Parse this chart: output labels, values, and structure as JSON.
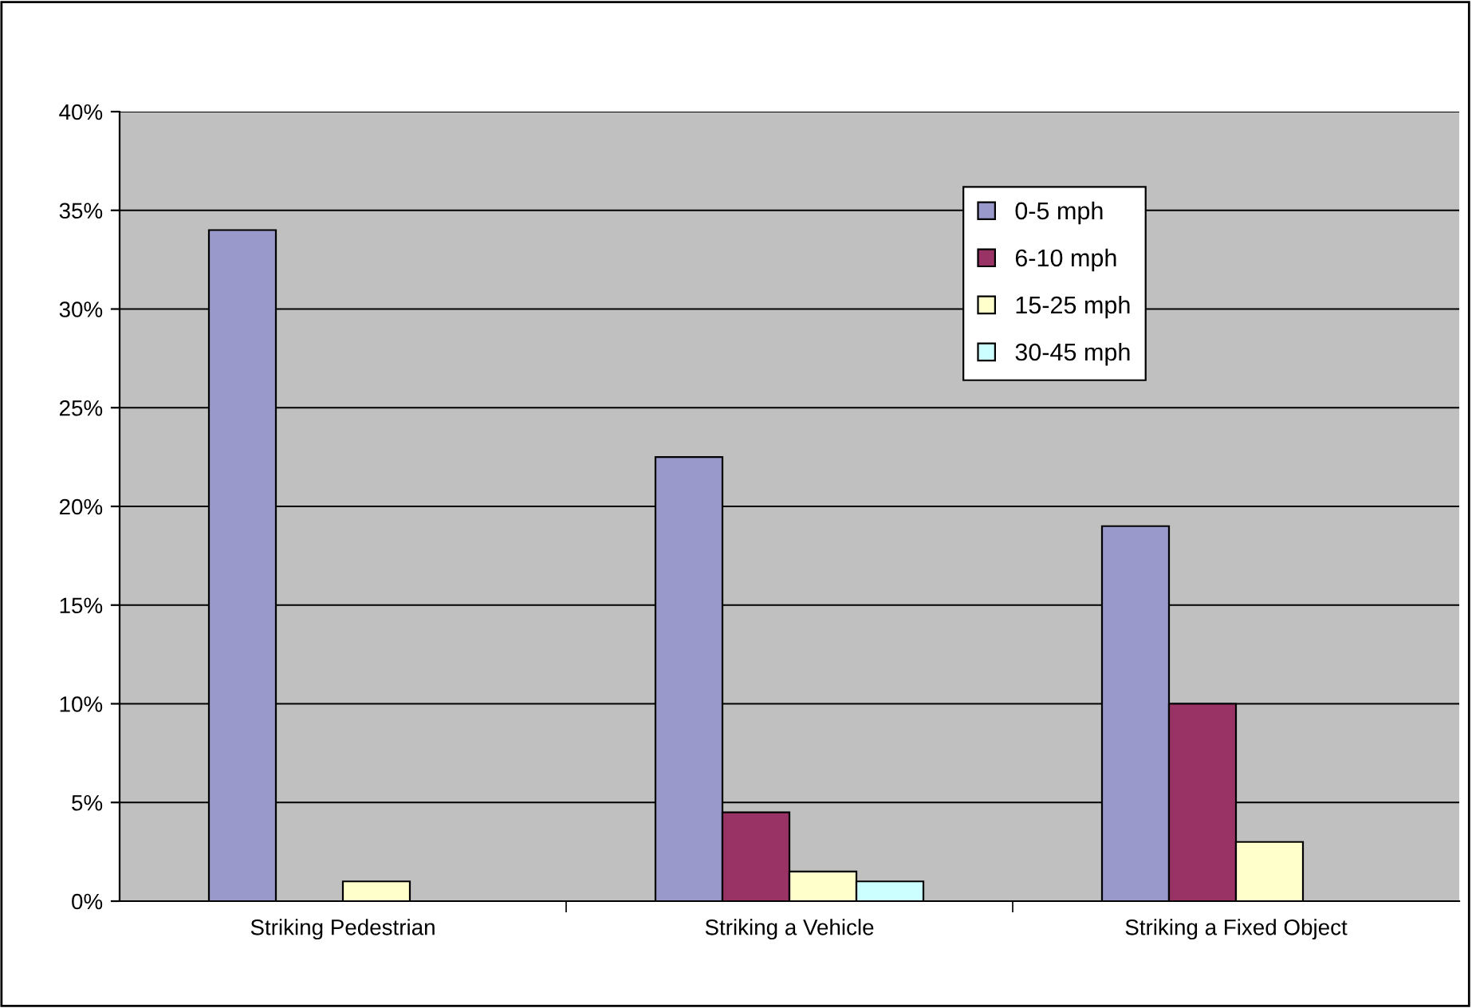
{
  "chart_data": {
    "type": "bar",
    "categories": [
      "Striking Pedestrian",
      "Striking a Vehicle",
      "Striking a Fixed Object"
    ],
    "series": [
      {
        "name": "0-5 mph",
        "color": "#9999cc",
        "values": [
          34,
          22.5,
          19
        ]
      },
      {
        "name": "6-10 mph",
        "color": "#993366",
        "values": [
          null,
          4.5,
          10
        ]
      },
      {
        "name": "15-25 mph",
        "color": "#ffffcc",
        "values": [
          1,
          1.5,
          3
        ]
      },
      {
        "name": "30-45 mph",
        "color": "#ccffff",
        "values": [
          null,
          1,
          null
        ]
      }
    ],
    "ylim": [
      0,
      40
    ],
    "yticks": [
      {
        "value": 0,
        "label": "0%"
      },
      {
        "value": 5,
        "label": "5%"
      },
      {
        "value": 10,
        "label": "10%"
      },
      {
        "value": 15,
        "label": "15%"
      },
      {
        "value": 20,
        "label": "20%"
      },
      {
        "value": 25,
        "label": "25%"
      },
      {
        "value": 30,
        "label": "30%"
      },
      {
        "value": 35,
        "label": "35%"
      },
      {
        "value": 40,
        "label": "40%"
      }
    ],
    "grid": "y",
    "legend": "top right"
  }
}
